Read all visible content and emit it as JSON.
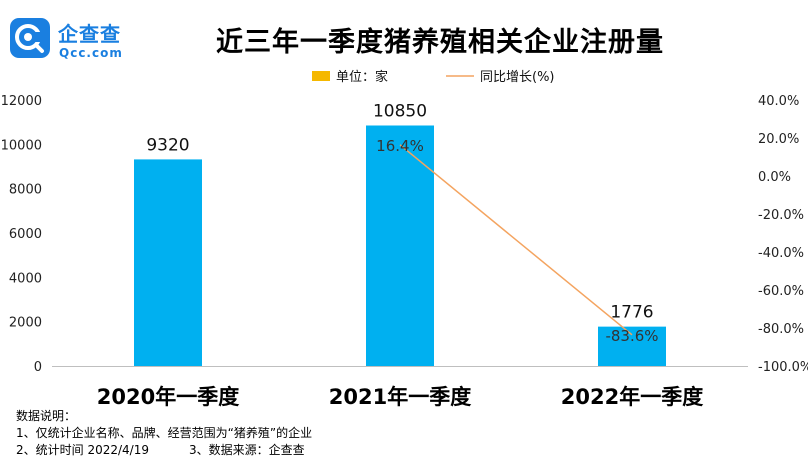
{
  "logo": {
    "name_cn": "企查查",
    "name_en": "Qcc.com"
  },
  "chart_data": {
    "type": "bar",
    "title": "近三年一季度猪养殖相关企业注册量",
    "categories": [
      "2020年一季度",
      "2021年一季度",
      "2022年一季度"
    ],
    "series": [
      {
        "name": "单位：家",
        "kind": "bar",
        "axis": "left",
        "color": "#00b0f0",
        "values": [
          9320,
          10850,
          1776
        ]
      },
      {
        "name": "同比增长(%)",
        "kind": "line",
        "axis": "right",
        "color": "#f4a460",
        "values": [
          null,
          16.4,
          -83.6
        ],
        "labels": [
          "",
          "16.4%",
          "-83.6%"
        ]
      }
    ],
    "bar_labels": [
      "9320",
      "10850",
      "1776"
    ],
    "y_left": {
      "min": 0,
      "max": 12000,
      "ticks": [
        "0",
        "2000",
        "4000",
        "6000",
        "8000",
        "10000",
        "12000"
      ]
    },
    "y_right": {
      "min": -100,
      "max": 40,
      "ticks": [
        "-100.0%",
        "-80.0%",
        "-60.0%",
        "-40.0%",
        "-20.0%",
        "0.0%",
        "20.0%",
        "40.0%"
      ]
    },
    "legend_position": "top"
  },
  "notes": {
    "heading": "数据说明：",
    "item1": "1、仅统计企业名称、品牌、经营范围为“猪养殖”的企业",
    "item2": "2、统计时间 2022/4/19",
    "item3": "3、数据来源：企查查"
  }
}
